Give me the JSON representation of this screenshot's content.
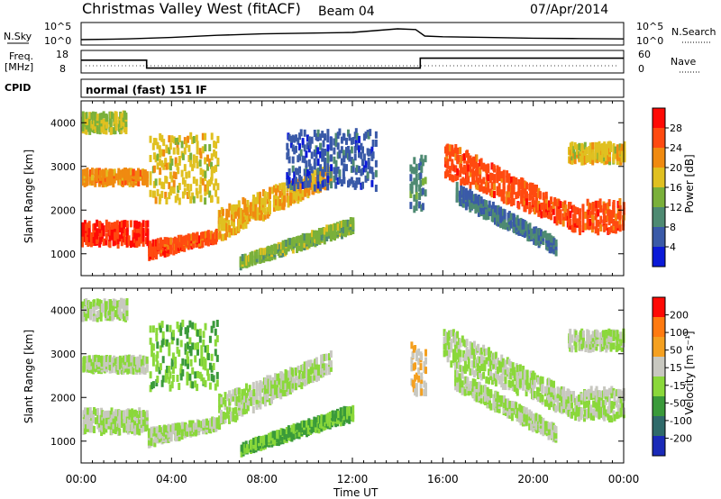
{
  "header": {
    "title": "Christmas Valley West (fitACF)",
    "beam": "Beam 04",
    "date": "07/Apr/2014"
  },
  "strips": {
    "nsky": {
      "label": "N.Sky",
      "ticks": [
        "10^5",
        "10^0"
      ],
      "right_ticks": [
        "10^5",
        "10^0"
      ],
      "right_label": "N.Search",
      "series": [
        [
          0,
          1.0
        ],
        [
          2,
          1.2
        ],
        [
          4,
          1.6
        ],
        [
          6,
          2.2
        ],
        [
          8,
          2.6
        ],
        [
          10,
          2.8
        ],
        [
          12,
          3.0
        ],
        [
          13,
          3.5
        ],
        [
          14,
          4.0
        ],
        [
          14.8,
          3.8
        ],
        [
          15.2,
          2.0
        ],
        [
          16,
          1.8
        ],
        [
          18,
          1.6
        ],
        [
          20,
          1.4
        ],
        [
          22,
          1.3
        ],
        [
          24,
          1.2
        ]
      ]
    },
    "freq": {
      "label_top": "Freq.",
      "label_bottom": "[MHz]",
      "ticks": [
        "18",
        "8"
      ],
      "right_ticks": [
        "60",
        "0"
      ],
      "right_label": "Nave",
      "series": [
        [
          0,
          14
        ],
        [
          2.9,
          14
        ],
        [
          2.9,
          10
        ],
        [
          15,
          10
        ],
        [
          15,
          15
        ],
        [
          24,
          15
        ]
      ]
    },
    "cpid": {
      "label": "CPID",
      "text": "normal (fast) 151 IF"
    }
  },
  "power_panel": {
    "ylabel": "Slant Range [km]",
    "yticks": [
      "4000",
      "3000",
      "2000",
      "1000"
    ],
    "colorbar_label": "Power [dB]",
    "colorbar_ticks": [
      "28",
      "24",
      "20",
      "16",
      "12",
      "8",
      "4"
    ],
    "colors": [
      "#0b1ad8",
      "#3a5aa8",
      "#4e8a72",
      "#7ab03a",
      "#e0c020",
      "#f08a10",
      "#ff4a10",
      "#ff0a05"
    ]
  },
  "velocity_panel": {
    "ylabel": "Slant Range [km]",
    "yticks": [
      "4000",
      "3000",
      "2000",
      "1000"
    ],
    "colorbar_label": "Velocity [m s⁻¹]",
    "colorbar_ticks": [
      "200",
      "100",
      "50",
      "15",
      "-15",
      "-50",
      "-100",
      "-200"
    ],
    "colors": [
      "#1a2ab8",
      "#2f6a6a",
      "#3a9a3a",
      "#8ad83a",
      "#c8c8c0",
      "#f4a020",
      "#ff7a10",
      "#ff0a05"
    ]
  },
  "xaxis": {
    "label": "Time UT",
    "ticks": [
      "00:00",
      "04:00",
      "08:00",
      "12:00",
      "16:00",
      "20:00",
      "00:00"
    ]
  },
  "chart_data": [
    {
      "type": "heatmap",
      "title": "Christmas Valley West (fitACF)",
      "ylabel": "Slant Range [km]",
      "xlabel": "Time UT",
      "xlim": [
        0,
        24
      ],
      "ylim": [
        500,
        4500
      ],
      "colorbar": {
        "label": "Power [dB]",
        "range": [
          0,
          32
        ]
      },
      "features": [
        {
          "t": [
            0.0,
            2.9
          ],
          "range": [
            1200,
            1700
          ],
          "value": 28
        },
        {
          "t": [
            0.0,
            2.9
          ],
          "range": [
            2600,
            2900
          ],
          "value": 22
        },
        {
          "t": [
            0.0,
            2.0
          ],
          "range": [
            3800,
            4200
          ],
          "value": 16
        },
        {
          "t": [
            2.9,
            6.0
          ],
          "range_start": [
            900,
            1250
          ],
          "range_end": [
            1300,
            1500
          ],
          "value": 26
        },
        {
          "t": [
            3.0,
            6.0
          ],
          "range": [
            2200,
            3700
          ],
          "value": 18
        },
        {
          "t": [
            6.0,
            11.0
          ],
          "range_start": [
            1300,
            2000
          ],
          "range_end": [
            2600,
            3000
          ],
          "value": 20
        },
        {
          "t": [
            7.0,
            12.0
          ],
          "range_start": [
            700,
            900
          ],
          "range_end": [
            1500,
            1800
          ],
          "value": 14
        },
        {
          "t": [
            9.0,
            13.0
          ],
          "range": [
            2500,
            3800
          ],
          "value": 6
        },
        {
          "t": [
            14.5,
            15.2
          ],
          "range": [
            2000,
            3200
          ],
          "value": 10
        },
        {
          "t": [
            16.0,
            22.0
          ],
          "range_start": [
            2800,
            3600
          ],
          "range_end": [
            1500,
            2000
          ],
          "value": 26
        },
        {
          "t": [
            16.5,
            21.0
          ],
          "range_start": [
            2200,
            2600
          ],
          "range_end": [
            1000,
            1300
          ],
          "value": 8
        },
        {
          "t": [
            22.0,
            24.0
          ],
          "range": [
            1500,
            2200
          ],
          "value": 26
        },
        {
          "t": [
            21.5,
            24.0
          ],
          "range": [
            3100,
            3500
          ],
          "value": 18
        }
      ]
    },
    {
      "type": "heatmap",
      "ylabel": "Slant Range [km]",
      "xlabel": "Time UT",
      "xlim": [
        0,
        24
      ],
      "ylim": [
        500,
        4500
      ],
      "colorbar": {
        "label": "Velocity [m s⁻¹]",
        "range": [
          -200,
          200
        ]
      },
      "features": [
        {
          "t": [
            0.0,
            2.9
          ],
          "range": [
            1200,
            1700
          ],
          "value": 0
        },
        {
          "t": [
            0.0,
            2.9
          ],
          "range": [
            2600,
            2900
          ],
          "value": 0
        },
        {
          "t": [
            0.0,
            2.0
          ],
          "range": [
            3800,
            4200
          ],
          "value": 0
        },
        {
          "t": [
            2.9,
            6.0
          ],
          "range_start": [
            900,
            1250
          ],
          "range_end": [
            1300,
            1500
          ],
          "value": 0
        },
        {
          "t": [
            3.0,
            6.0
          ],
          "range": [
            2200,
            3700
          ],
          "value": -40
        },
        {
          "t": [
            6.0,
            11.0
          ],
          "range_start": [
            1300,
            2000
          ],
          "range_end": [
            2600,
            3000
          ],
          "value": 0
        },
        {
          "t": [
            7.0,
            12.0
          ],
          "range_start": [
            700,
            900
          ],
          "range_end": [
            1500,
            1800
          ],
          "value": -50
        },
        {
          "t": [
            14.5,
            15.2
          ],
          "range": [
            2000,
            3200
          ],
          "value": 40
        },
        {
          "t": [
            16.0,
            22.0
          ],
          "range_start": [
            2800,
            3600
          ],
          "range_end": [
            1500,
            2000
          ],
          "value": 0
        },
        {
          "t": [
            16.5,
            21.0
          ],
          "range_start": [
            2200,
            2600
          ],
          "range_end": [
            1000,
            1300
          ],
          "value": 0
        },
        {
          "t": [
            22.0,
            24.0
          ],
          "range": [
            1500,
            2200
          ],
          "value": 0
        },
        {
          "t": [
            21.5,
            24.0
          ],
          "range": [
            3100,
            3500
          ],
          "value": 0
        }
      ]
    }
  ]
}
